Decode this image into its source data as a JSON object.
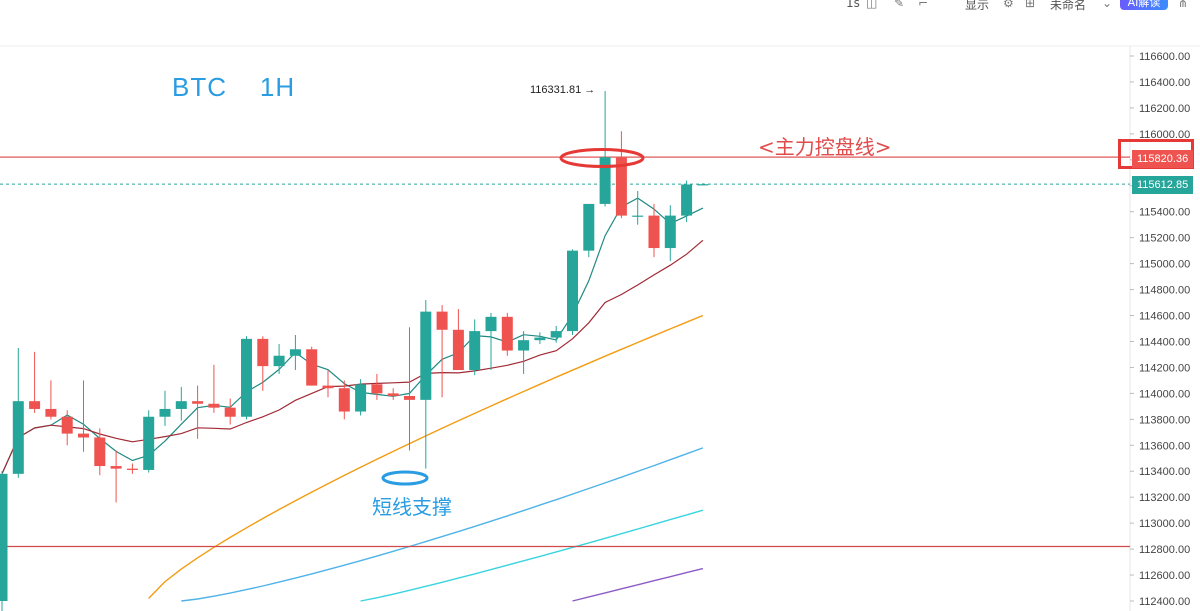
{
  "toolbar": {
    "items": [
      "1s",
      "显示",
      "未命名"
    ],
    "ai_button": "AI解读"
  },
  "annotations": {
    "title": "BTC    1H",
    "main_line_label": "<主力控盘线>",
    "support_label": "短线支撑",
    "peak_label": "116331.81 →"
  },
  "price_tags": {
    "main_line": "115820.36",
    "current": "115612.85"
  },
  "colors": {
    "up": "#26a69a",
    "down": "#ef5350",
    "ma_fast": "#1f8a83",
    "ma_mid": "#a12a35",
    "ma_orange": "#f39c12",
    "ma_blue": "#4fb3e8",
    "ma_cyan": "#3ad4e0",
    "ma_purple": "#8e5cc9",
    "level_line": "#e57373"
  },
  "chart_data": {
    "type": "candlestick",
    "symbol": "BTC",
    "timeframe": "1H",
    "ylim": [
      112400,
      116700
    ],
    "yticks": [
      112400,
      112600,
      112800,
      113000,
      113200,
      113400,
      113600,
      113800,
      114000,
      114200,
      114400,
      114600,
      114800,
      115000,
      115200,
      115400,
      115600,
      115800,
      116000,
      116200,
      116400,
      116600
    ],
    "levels": {
      "main_control": 115820.36,
      "current": 115612.85,
      "lower": 112820,
      "peak": 116331.81
    },
    "candles": [
      {
        "o": 112400,
        "h": 113400,
        "l": 112300,
        "c": 113380
      },
      {
        "o": 113380,
        "h": 114350,
        "l": 113350,
        "c": 113940
      },
      {
        "o": 113940,
        "h": 114320,
        "l": 113850,
        "c": 113880
      },
      {
        "o": 113880,
        "h": 114100,
        "l": 113800,
        "c": 113820
      },
      {
        "o": 113820,
        "h": 113870,
        "l": 113600,
        "c": 113690
      },
      {
        "o": 113690,
        "h": 114100,
        "l": 113550,
        "c": 113660
      },
      {
        "o": 113660,
        "h": 113730,
        "l": 113370,
        "c": 113440
      },
      {
        "o": 113440,
        "h": 113560,
        "l": 113160,
        "c": 113420
      },
      {
        "o": 113420,
        "h": 113460,
        "l": 113380,
        "c": 113410
      },
      {
        "o": 113410,
        "h": 113870,
        "l": 113390,
        "c": 113820
      },
      {
        "o": 113820,
        "h": 114020,
        "l": 113750,
        "c": 113880
      },
      {
        "o": 113880,
        "h": 114050,
        "l": 113790,
        "c": 113940
      },
      {
        "o": 113940,
        "h": 114060,
        "l": 113650,
        "c": 113920
      },
      {
        "o": 113920,
        "h": 114220,
        "l": 113850,
        "c": 113890
      },
      {
        "o": 113890,
        "h": 113960,
        "l": 113760,
        "c": 113820
      },
      {
        "o": 113820,
        "h": 114440,
        "l": 113800,
        "c": 114420
      },
      {
        "o": 114420,
        "h": 114440,
        "l": 114020,
        "c": 114210
      },
      {
        "o": 114210,
        "h": 114380,
        "l": 114150,
        "c": 114290
      },
      {
        "o": 114290,
        "h": 114450,
        "l": 114180,
        "c": 114340
      },
      {
        "o": 114340,
        "h": 114360,
        "l": 114060,
        "c": 114060
      },
      {
        "o": 114060,
        "h": 114180,
        "l": 113970,
        "c": 114040
      },
      {
        "o": 114040,
        "h": 114100,
        "l": 113800,
        "c": 113860
      },
      {
        "o": 113860,
        "h": 114110,
        "l": 113830,
        "c": 114070
      },
      {
        "o": 114070,
        "h": 114150,
        "l": 113950,
        "c": 114000
      },
      {
        "o": 114000,
        "h": 114040,
        "l": 113950,
        "c": 113980
      },
      {
        "o": 113980,
        "h": 114510,
        "l": 113560,
        "c": 113950
      },
      {
        "o": 113950,
        "h": 114720,
        "l": 113420,
        "c": 114630
      },
      {
        "o": 114630,
        "h": 114680,
        "l": 113970,
        "c": 114490
      },
      {
        "o": 114490,
        "h": 114650,
        "l": 114180,
        "c": 114180
      },
      {
        "o": 114180,
        "h": 114570,
        "l": 114140,
        "c": 114480
      },
      {
        "o": 114480,
        "h": 114620,
        "l": 114180,
        "c": 114590
      },
      {
        "o": 114590,
        "h": 114620,
        "l": 114290,
        "c": 114330
      },
      {
        "o": 114330,
        "h": 114480,
        "l": 114150,
        "c": 114410
      },
      {
        "o": 114410,
        "h": 114470,
        "l": 114380,
        "c": 114430
      },
      {
        "o": 114430,
        "h": 114520,
        "l": 114390,
        "c": 114480
      },
      {
        "o": 114480,
        "h": 115110,
        "l": 114450,
        "c": 115100
      },
      {
        "o": 115100,
        "h": 115450,
        "l": 115050,
        "c": 115460
      },
      {
        "o": 115460,
        "h": 116330,
        "l": 115440,
        "c": 115820
      },
      {
        "o": 115820,
        "h": 116020,
        "l": 115350,
        "c": 115370
      },
      {
        "o": 115370,
        "h": 115560,
        "l": 115300,
        "c": 115370
      },
      {
        "o": 115370,
        "h": 115460,
        "l": 115050,
        "c": 115120
      },
      {
        "o": 115120,
        "h": 115450,
        "l": 115020,
        "c": 115370
      },
      {
        "o": 115370,
        "h": 115640,
        "l": 115320,
        "c": 115610
      },
      {
        "o": 115612,
        "h": 115620,
        "l": 115605,
        "c": 115612
      }
    ]
  }
}
